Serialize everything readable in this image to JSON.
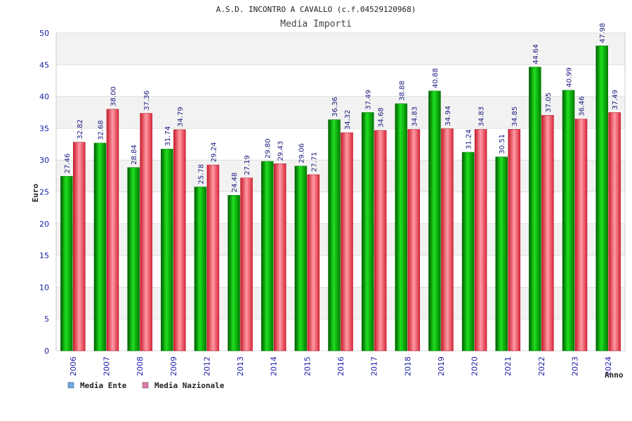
{
  "chart_data": {
    "type": "bar",
    "title": "A.S.D. INCONTRO A CAVALLO (c.f.04529120968)",
    "subtitle": "Media Importi",
    "ylabel": "Euro",
    "xlabel": "Anno",
    "ylim": [
      0,
      50
    ],
    "yticks": [
      0,
      5,
      10,
      15,
      20,
      25,
      30,
      35,
      40,
      45,
      50
    ],
    "grid": true,
    "legend_position": "bottom-left",
    "categories": [
      "2006",
      "2007",
      "2008",
      "2009",
      "2012",
      "2013",
      "2014",
      "2015",
      "2016",
      "2017",
      "2018",
      "2019",
      "2020",
      "2021",
      "2022",
      "2023",
      "2024"
    ],
    "series": [
      {
        "name": "Media Ente",
        "color": "#00b000",
        "legend_color": "#6aa8e8",
        "values": [
          27.46,
          32.68,
          28.84,
          31.74,
          25.78,
          24.48,
          29.8,
          29.06,
          36.36,
          37.49,
          38.88,
          40.88,
          31.24,
          30.51,
          44.64,
          40.99,
          47.98
        ],
        "labels": [
          "27.46",
          "32.68",
          "28.84",
          "31.74",
          "25.78",
          "24.48",
          "29.80",
          "29.06",
          "36.36",
          "37.49",
          "38.88",
          "40.88",
          "31.24",
          "30.51",
          "44.64",
          "40.99",
          "47.98"
        ]
      },
      {
        "name": "Media Nazionale",
        "color": "#e83040",
        "legend_color": "#e07aa8",
        "values": [
          32.82,
          38.0,
          37.36,
          34.79,
          29.24,
          27.19,
          29.43,
          27.71,
          34.32,
          34.68,
          34.83,
          34.94,
          34.83,
          34.85,
          37.05,
          36.46,
          37.49
        ],
        "labels": [
          "32.82",
          "38.00",
          "37.36",
          "34.79",
          "29.24",
          "27.19",
          "29.43",
          "27.71",
          "34.32",
          "34.68",
          "34.83",
          "34.94",
          "34.83",
          "34.85",
          "37.05",
          "36.46",
          "37.49"
        ]
      }
    ]
  }
}
